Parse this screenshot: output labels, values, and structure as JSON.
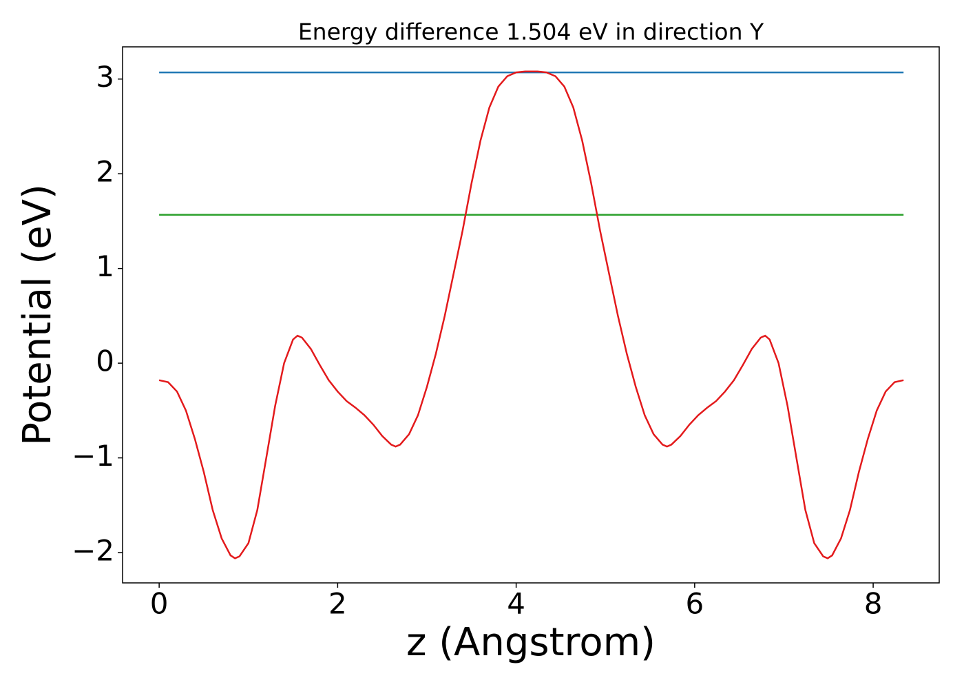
{
  "chart_data": {
    "type": "line",
    "title": "Energy difference 1.504 eV in direction Y",
    "x_label": "z (Angstrom)",
    "y_label": "Potential (eV)",
    "xlim": [
      -0.41,
      8.74
    ],
    "ylim": [
      -2.32,
      3.34
    ],
    "xticks": [
      0,
      2,
      4,
      6,
      8
    ],
    "yticks": [
      3,
      2,
      1,
      0,
      {
        "value": -1,
        "label": "−1"
      },
      {
        "value": -2,
        "label": "−2"
      }
    ],
    "series": [
      {
        "color": "#1f77b4",
        "x": [
          0,
          8.34
        ],
        "values": [
          3.07,
          3.07
        ]
      },
      {
        "color": "#2ca02c",
        "x": [
          0,
          8.34
        ],
        "values": [
          1.566,
          1.566
        ]
      },
      {
        "color": "#e31a1c",
        "x": [
          0,
          0.1,
          0.2,
          0.3,
          0.4,
          0.5,
          0.6,
          0.7,
          0.8,
          0.85,
          0.9,
          1.0,
          1.1,
          1.2,
          1.3,
          1.4,
          1.5,
          1.55,
          1.6,
          1.7,
          1.8,
          1.9,
          2.0,
          2.1,
          2.2,
          2.3,
          2.4,
          2.5,
          2.6,
          2.65,
          2.7,
          2.8,
          2.9,
          3.0,
          3.1,
          3.2,
          3.3,
          3.4,
          3.5,
          3.6,
          3.7,
          3.8,
          3.9,
          4.0,
          4.1,
          4.24,
          4.34,
          4.44,
          4.54,
          4.64,
          4.74,
          4.84,
          4.94,
          5.04,
          5.14,
          5.24,
          5.34,
          5.44,
          5.54,
          5.64,
          5.69,
          5.74,
          5.84,
          5.94,
          6.04,
          6.14,
          6.24,
          6.34,
          6.44,
          6.54,
          6.64,
          6.74,
          6.79,
          6.84,
          6.94,
          7.04,
          7.14,
          7.24,
          7.34,
          7.44,
          7.49,
          7.54,
          7.64,
          7.74,
          7.84,
          7.94,
          8.04,
          8.14,
          8.24,
          8.34
        ],
        "values": [
          -0.18,
          -0.2,
          -0.3,
          -0.5,
          -0.8,
          -1.15,
          -1.55,
          -1.85,
          -2.03,
          -2.06,
          -2.04,
          -1.9,
          -1.55,
          -1.0,
          -0.45,
          0.0,
          0.25,
          0.29,
          0.27,
          0.15,
          -0.02,
          -0.18,
          -0.3,
          -0.4,
          -0.47,
          -0.55,
          -0.65,
          -0.77,
          -0.86,
          -0.88,
          -0.86,
          -0.75,
          -0.55,
          -0.25,
          0.1,
          0.5,
          0.95,
          1.4,
          1.9,
          2.35,
          2.7,
          2.92,
          3.03,
          3.07,
          3.08,
          3.08,
          3.07,
          3.03,
          2.92,
          2.7,
          2.35,
          1.9,
          1.4,
          0.95,
          0.5,
          0.1,
          -0.25,
          -0.55,
          -0.75,
          -0.86,
          -0.88,
          -0.86,
          -0.77,
          -0.65,
          -0.55,
          -0.47,
          -0.4,
          -0.3,
          -0.18,
          -0.02,
          0.15,
          0.27,
          0.29,
          0.25,
          0.0,
          -0.45,
          -1.0,
          -1.55,
          -1.9,
          -2.04,
          -2.06,
          -2.03,
          -1.85,
          -1.55,
          -1.15,
          -0.8,
          -0.5,
          -0.3,
          -0.2,
          -0.18
        ]
      }
    ]
  }
}
